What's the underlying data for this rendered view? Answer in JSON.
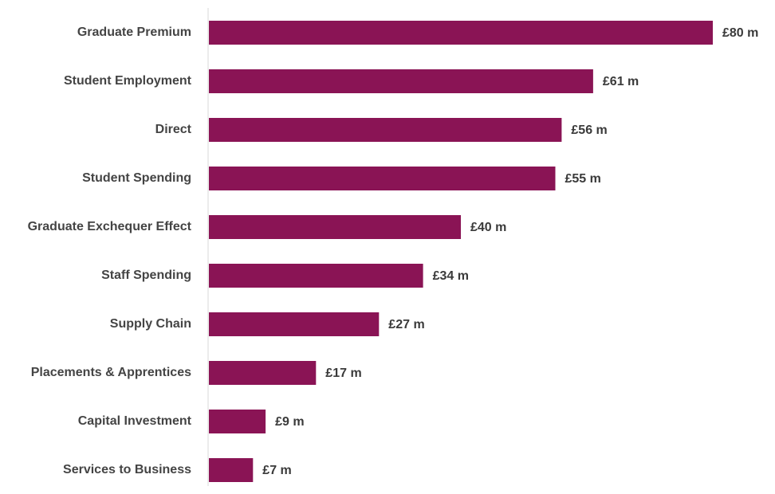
{
  "chart_data": {
    "type": "bar",
    "orientation": "horizontal",
    "title": "",
    "xlabel": "",
    "ylabel": "",
    "grid": false,
    "legend": "none",
    "xlim": [
      0,
      80
    ],
    "categories": [
      "Graduate Premium",
      "Student Employment",
      "Direct",
      "Student Spending",
      "Graduate Exchequer Effect",
      "Staff Spending",
      "Supply Chain",
      "Placements & Apprentices",
      "Capital Investment",
      "Services to Business"
    ],
    "values": [
      80,
      61,
      56,
      55,
      40,
      34,
      27,
      17,
      9,
      7
    ],
    "value_labels": [
      "£80 m",
      "£61 m",
      "£56 m",
      "£55 m",
      "£40 m",
      "£34 m",
      "£27 m",
      "£17 m",
      "£9 m",
      "£7 m"
    ],
    "colors": {
      "bar": "#8a1455",
      "axis_line": "#d9d9d9",
      "text": "#444444"
    }
  }
}
